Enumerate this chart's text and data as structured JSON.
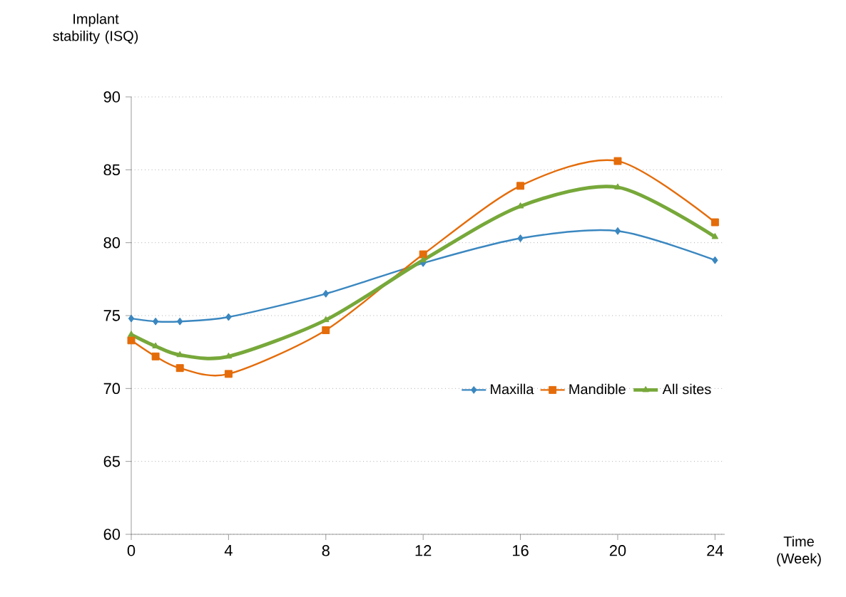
{
  "chart_data": {
    "type": "line",
    "ylabel": "Implant stability (ISQ)",
    "xlabel": "Time (Week)",
    "x": [
      0,
      1,
      2,
      4,
      8,
      12,
      16,
      20,
      24
    ],
    "series": [
      {
        "name": "Maxilla",
        "color": "#3a87c0",
        "marker": "diamond",
        "values": [
          74.8,
          74.6,
          74.6,
          74.9,
          76.5,
          78.6,
          80.3,
          80.8,
          78.8
        ]
      },
      {
        "name": "Mandible",
        "color": "#e46c0a",
        "marker": "square",
        "values": [
          73.3,
          72.2,
          71.4,
          71.0,
          74.0,
          79.2,
          83.9,
          85.6,
          81.4
        ]
      },
      {
        "name": "All sites",
        "color": "#77a83a",
        "marker": "triangle",
        "values": [
          73.7,
          72.9,
          72.3,
          72.2,
          74.7,
          78.8,
          82.5,
          83.8,
          80.4
        ]
      }
    ],
    "xlim": [
      0,
      24.4
    ],
    "ylim": [
      60,
      90
    ],
    "xticks": [
      0,
      4,
      8,
      12,
      16,
      20,
      24
    ],
    "yticks": [
      60,
      65,
      70,
      75,
      80,
      85,
      90
    ],
    "grid": "y",
    "legend": "right",
    "line_style": "solid"
  }
}
